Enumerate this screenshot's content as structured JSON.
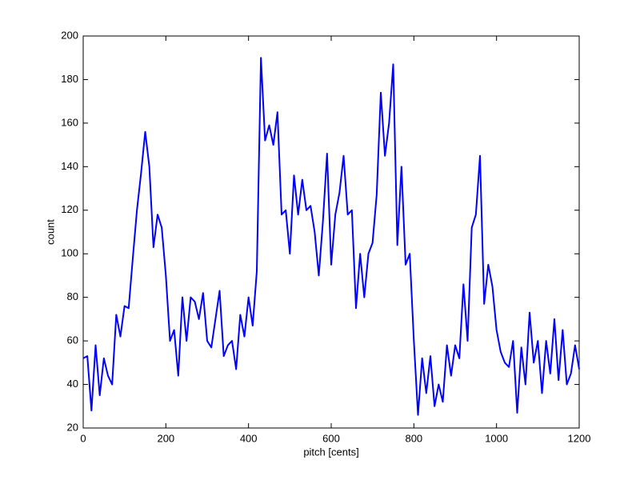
{
  "chart_data": {
    "type": "line",
    "x_label": "pitch [cents]",
    "y_label": "count",
    "color": "#0000ff",
    "x": [
      0,
      10,
      20,
      30,
      40,
      50,
      60,
      70,
      80,
      90,
      100,
      110,
      120,
      130,
      140,
      150,
      160,
      170,
      180,
      190,
      200,
      210,
      220,
      230,
      240,
      250,
      260,
      270,
      280,
      290,
      300,
      310,
      320,
      330,
      340,
      350,
      360,
      370,
      380,
      390,
      400,
      410,
      420,
      430,
      440,
      450,
      460,
      470,
      480,
      490,
      500,
      510,
      520,
      530,
      540,
      550,
      560,
      570,
      580,
      590,
      600,
      610,
      620,
      630,
      640,
      650,
      660,
      670,
      680,
      690,
      700,
      710,
      720,
      730,
      740,
      750,
      760,
      770,
      780,
      790,
      800,
      810,
      820,
      830,
      840,
      850,
      860,
      870,
      880,
      890,
      900,
      910,
      920,
      930,
      940,
      950,
      960,
      970,
      980,
      990,
      1000,
      1010,
      1020,
      1030,
      1040,
      1050,
      1060,
      1070,
      1080,
      1090,
      1100,
      1110,
      1120,
      1130,
      1140,
      1150,
      1160,
      1170,
      1180,
      1190,
      1200
    ],
    "values": [
      52,
      53,
      28,
      58,
      35,
      52,
      44,
      40,
      72,
      62,
      76,
      75,
      98,
      120,
      137,
      156,
      140,
      103,
      118,
      112,
      90,
      60,
      65,
      44,
      80,
      60,
      80,
      78,
      70,
      82,
      60,
      57,
      70,
      83,
      53,
      58,
      60,
      47,
      72,
      62,
      80,
      67,
      92,
      190,
      152,
      159,
      150,
      165,
      118,
      120,
      100,
      136,
      118,
      134,
      120,
      122,
      110,
      90,
      115,
      146,
      95,
      118,
      128,
      145,
      118,
      120,
      75,
      100,
      80,
      100,
      105,
      127,
      174,
      145,
      160,
      187,
      104,
      140,
      95,
      100,
      60,
      26,
      52,
      36,
      53,
      30,
      40,
      32,
      58,
      44,
      58,
      52,
      86,
      60,
      112,
      118,
      145,
      77,
      95,
      85,
      65,
      55,
      50,
      48,
      60,
      27,
      57,
      40,
      73,
      50,
      60,
      36,
      60,
      45,
      70,
      42,
      65,
      40,
      45,
      58,
      47
    ],
    "xlim": [
      0,
      1200
    ],
    "ylim": [
      20,
      200
    ],
    "xticks": [
      0,
      200,
      400,
      600,
      800,
      1000,
      1200
    ],
    "yticks": [
      20,
      40,
      60,
      80,
      100,
      120,
      140,
      160,
      180,
      200
    ]
  }
}
